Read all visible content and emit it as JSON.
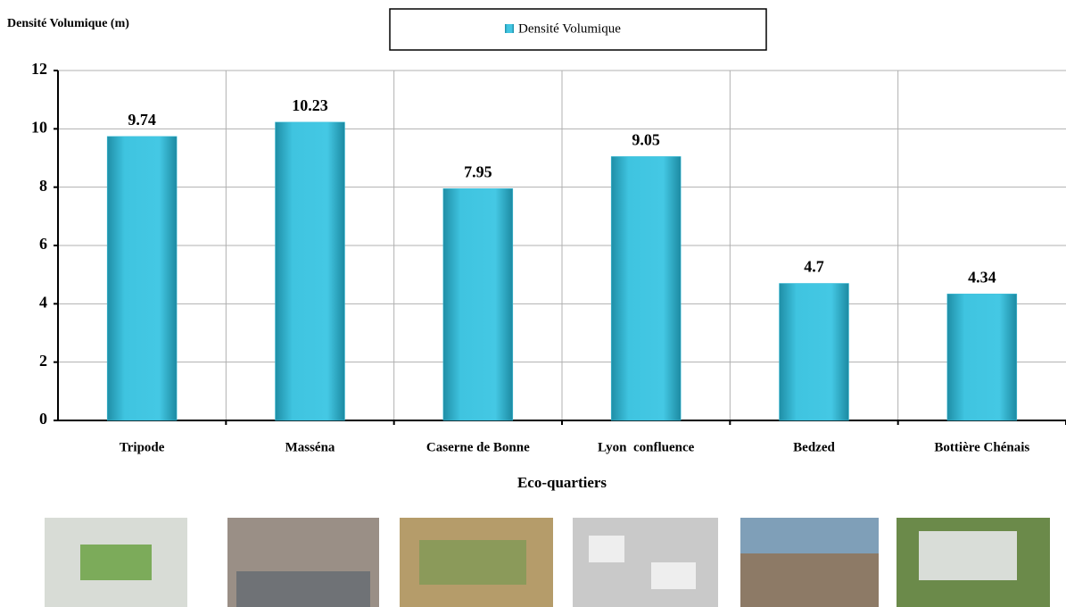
{
  "chart_data": {
    "type": "bar",
    "title": "Densité Volumique (m)",
    "x_label": "Eco-quartiers",
    "categories": [
      "Tripode",
      "Masséna",
      "Caserne de Bonne",
      "Lyon  confluence",
      "Bedzed",
      "Bottière Chénais"
    ],
    "series": [
      {
        "name": "Densité Volumique",
        "color": "#3fc1dc",
        "values": [
          9.74,
          10.23,
          7.95,
          9.05,
          4.7,
          4.34
        ]
      }
    ],
    "ylim": [
      0,
      12
    ],
    "yticks": [
      0,
      2,
      4,
      6,
      8,
      10,
      12
    ],
    "grid": true,
    "legend": "top"
  }
}
